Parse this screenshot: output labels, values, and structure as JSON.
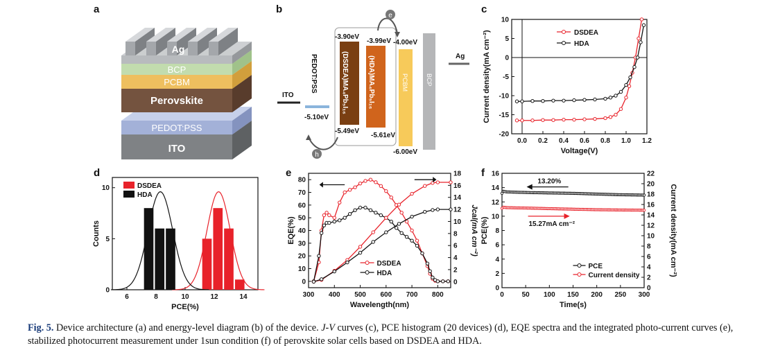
{
  "panels": {
    "a": {
      "label": "a",
      "layers": [
        {
          "name": "Ag",
          "color": "#9ea1a6"
        },
        {
          "name": "BCP",
          "color": "#c7dfb5"
        },
        {
          "name": "PCBM",
          "color": "#efc56a"
        },
        {
          "name": "Perovskite",
          "color": "#7a5a45"
        },
        {
          "name": "PEDOT:PSS",
          "color": "#a9b7da"
        },
        {
          "name": "ITO",
          "color": "#8a8d90"
        }
      ]
    },
    "b": {
      "label": "b",
      "electron": "e",
      "hole": "h",
      "ito": {
        "name": "ITO"
      },
      "pedot": {
        "name": "PEDOT:PSS",
        "level": "-5.10eV"
      },
      "dsdea": {
        "name": "(DSDEA)MA₄Pb₅I₁₆",
        "top": "-3.90eV",
        "bottom": "-5.49eV"
      },
      "hda": {
        "name": "(HDA)MA₄Pb₅I₁₆",
        "top": "-3.99eV",
        "bottom": "-5.61eV"
      },
      "pcbm": {
        "name": "PCBM",
        "top": "-4.00eV",
        "bottom": "-6.00eV"
      },
      "bcp": {
        "name": "BCP"
      },
      "ag": {
        "name": "Ag"
      }
    },
    "c": {
      "label": "c",
      "ylabel": "Current density(mA cm⁻²)",
      "xlabel": "Voltage(V)"
    },
    "d": {
      "label": "d",
      "ylabel": "Counts",
      "xlabel": "PCE(%)"
    },
    "e": {
      "label": "e",
      "ylabel": "EQE(%)",
      "ylabel_right": "Jcal(mA cm⁻²)",
      "xlabel": "Wavelength(nm)"
    },
    "f": {
      "label": "f",
      "ylabel": "PCE(%)",
      "ylabel_right": "Current density(mA cm⁻²)",
      "xlabel": "Time(s)",
      "annotation_pce": "13.20%",
      "annotation_current": "15.27mA cm⁻²"
    }
  },
  "chart_data": [
    {
      "panel": "c",
      "type": "line",
      "xlabel": "Voltage(V)",
      "ylabel": "Current density(mA cm⁻²)",
      "xlim": [
        -0.1,
        1.2
      ],
      "ylim": [
        -20,
        10
      ],
      "xticks": [
        0.0,
        0.2,
        0.4,
        0.6,
        0.8,
        1.0,
        1.2
      ],
      "yticks": [
        -20,
        -15,
        -10,
        -5,
        0,
        5,
        10
      ],
      "legend": "top-left",
      "series": [
        {
          "name": "DSDEA",
          "color": "#e8222a",
          "x": [
            -0.05,
            0.0,
            0.1,
            0.2,
            0.3,
            0.4,
            0.5,
            0.6,
            0.7,
            0.8,
            0.85,
            0.9,
            0.95,
            1.0,
            1.03,
            1.06,
            1.09,
            1.12,
            1.15
          ],
          "y": [
            -16.5,
            -16.5,
            -16.5,
            -16.4,
            -16.4,
            -16.3,
            -16.3,
            -16.2,
            -16.1,
            -15.9,
            -15.6,
            -15.0,
            -13.5,
            -10.5,
            -7.5,
            -4.0,
            0.0,
            5.0,
            10.0
          ]
        },
        {
          "name": "HDA",
          "color": "#111111",
          "x": [
            -0.05,
            0.0,
            0.1,
            0.2,
            0.3,
            0.4,
            0.5,
            0.6,
            0.7,
            0.8,
            0.85,
            0.9,
            0.95,
            1.0,
            1.04,
            1.08,
            1.11,
            1.14,
            1.17
          ],
          "y": [
            -11.5,
            -11.5,
            -11.4,
            -11.4,
            -11.3,
            -11.3,
            -11.2,
            -11.1,
            -11.0,
            -10.8,
            -10.5,
            -10.0,
            -9.0,
            -7.2,
            -5.2,
            -2.5,
            0.0,
            4.0,
            8.5
          ]
        }
      ]
    },
    {
      "panel": "d",
      "type": "bar",
      "xlabel": "PCE(%)",
      "ylabel": "Counts",
      "xlim": [
        5,
        15
      ],
      "ylim": [
        0,
        11
      ],
      "xticks": [
        6,
        8,
        10,
        12,
        14
      ],
      "yticks": [
        0,
        5,
        10
      ],
      "legend": "top-left",
      "series": [
        {
          "name": "DSDEA",
          "color": "#e8222a",
          "x": [
            11.5,
            12.25,
            13.0,
            13.75
          ],
          "values": [
            5,
            8,
            6,
            1
          ],
          "fit_center": 12.3,
          "fit_peak": 9.6,
          "fit_sigma": 0.8
        },
        {
          "name": "HDA",
          "color": "#111111",
          "x": [
            7.5,
            8.25,
            9.0
          ],
          "values": [
            8,
            6,
            6
          ],
          "fit_center": 8.3,
          "fit_peak": 9.6,
          "fit_sigma": 0.85
        }
      ]
    },
    {
      "panel": "e",
      "type": "line",
      "xlabel": "Wavelength(nm)",
      "ylabel": "EQE(%)",
      "ylabel_right": "Jcal(mA cm⁻²)",
      "xlim": [
        300,
        850
      ],
      "ylim": [
        -5,
        85
      ],
      "ylim_right": [
        -1,
        18
      ],
      "xticks": [
        300,
        400,
        500,
        600,
        700,
        800
      ],
      "yticks": [
        0,
        10,
        20,
        30,
        40,
        50,
        60,
        70,
        80
      ],
      "yticks_right": [
        0,
        2,
        4,
        6,
        8,
        10,
        12,
        14,
        16,
        18
      ],
      "legend": "bottom-center",
      "series": [
        {
          "name": "DSDEA",
          "color": "#e8222a",
          "axis": "left",
          "x": [
            320,
            340,
            350,
            360,
            370,
            380,
            400,
            420,
            440,
            460,
            480,
            500,
            520,
            540,
            560,
            580,
            600,
            620,
            640,
            660,
            680,
            700,
            720,
            740,
            760,
            770,
            780,
            790,
            800,
            820,
            840
          ],
          "y": [
            0,
            15,
            40,
            52,
            54,
            52,
            50,
            62,
            70,
            72,
            74,
            77,
            79,
            80,
            78,
            75,
            71,
            66,
            60,
            54,
            47,
            40,
            32,
            22,
            12,
            6,
            2,
            0.5,
            0,
            0,
            0
          ]
        },
        {
          "name": "HDA",
          "color": "#111111",
          "axis": "left",
          "x": [
            320,
            340,
            350,
            360,
            370,
            380,
            400,
            420,
            440,
            460,
            480,
            500,
            520,
            540,
            560,
            580,
            600,
            620,
            640,
            660,
            680,
            700,
            720,
            740,
            760,
            770,
            780,
            790,
            800,
            820,
            840
          ],
          "y": [
            0,
            20,
            38,
            44,
            46,
            46,
            47,
            48,
            50,
            53,
            56,
            58,
            58,
            56,
            54,
            52,
            50,
            47,
            42,
            38,
            35,
            32,
            28,
            22,
            14,
            8,
            3,
            1,
            0,
            0,
            0
          ]
        },
        {
          "name": "DSDEA Jcal",
          "color": "#e8222a",
          "axis": "right",
          "x": [
            320,
            350,
            400,
            450,
            500,
            550,
            600,
            650,
            700,
            750,
            780,
            800,
            850
          ],
          "y": [
            0,
            0.3,
            1.8,
            3.6,
            5.8,
            8.2,
            10.6,
            12.8,
            14.6,
            15.9,
            16.4,
            16.5,
            16.5
          ]
        },
        {
          "name": "HDA Jcal",
          "color": "#111111",
          "axis": "right",
          "x": [
            320,
            350,
            400,
            450,
            500,
            550,
            600,
            650,
            700,
            750,
            780,
            800,
            850
          ],
          "y": [
            0,
            0.4,
            1.7,
            3.2,
            4.8,
            6.6,
            8.2,
            9.6,
            10.8,
            11.6,
            11.9,
            12.0,
            12.0
          ]
        }
      ]
    },
    {
      "panel": "f",
      "type": "line",
      "xlabel": "Time(s)",
      "ylabel": "PCE(%)",
      "ylabel_right": "Current density(mA cm⁻²)",
      "xlim": [
        0,
        300
      ],
      "ylim": [
        0,
        16
      ],
      "ylim_right": [
        0,
        22
      ],
      "xticks": [
        0,
        50,
        100,
        150,
        200,
        250,
        300
      ],
      "yticks": [
        0,
        2,
        4,
        6,
        8,
        10,
        12,
        14,
        16
      ],
      "yticks_right": [
        0,
        2,
        4,
        6,
        8,
        10,
        12,
        14,
        16,
        18,
        20,
        22
      ],
      "legend": "bottom-right",
      "series": [
        {
          "name": "PCE",
          "color": "#111111",
          "axis": "left",
          "x": [
            0,
            2,
            5,
            10,
            30,
            60,
            100,
            150,
            200,
            250,
            300
          ],
          "y": [
            13.2,
            13.5,
            13.45,
            13.4,
            13.35,
            13.3,
            13.25,
            13.2,
            13.1,
            13.0,
            12.95
          ]
        },
        {
          "name": "Current density",
          "color": "#e8222a",
          "axis": "right",
          "x": [
            0,
            2,
            5,
            10,
            30,
            60,
            100,
            150,
            200,
            250,
            300
          ],
          "y": [
            15.27,
            15.5,
            15.45,
            15.4,
            15.35,
            15.3,
            15.2,
            15.1,
            15.0,
            14.95,
            14.9
          ]
        }
      ]
    }
  ],
  "caption": {
    "fig_label": "Fig. 5.",
    "part1": " Device architecture (a) and energy-level diagram (b) of the device. ",
    "jv": "J-V",
    "part2": " curves (c), PCE histogram (20 devices) (d), EQE spectra and the integrated photo-current curves (e), stabilized photocurrent measurement under 1sun condition (f) of perovskite solar cells based on DSDEA and HDA."
  }
}
